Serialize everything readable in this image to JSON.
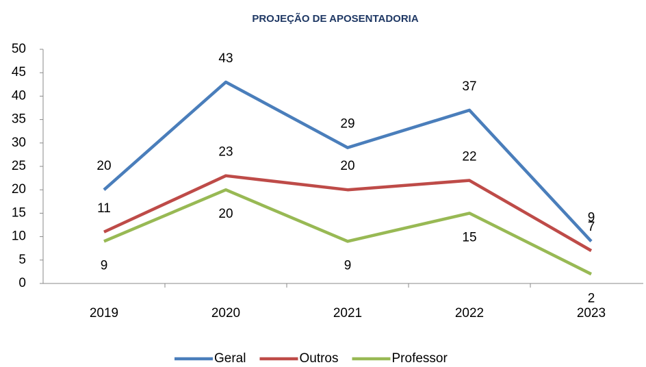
{
  "chart_data": {
    "type": "line",
    "title": "PROJEÇÃO DE APOSENTADORIA",
    "categories": [
      "2019",
      "2020",
      "2021",
      "2022",
      "2023"
    ],
    "series": [
      {
        "name": "Geral",
        "color": "#4a7ebb",
        "values": [
          20,
          43,
          29,
          37,
          9
        ]
      },
      {
        "name": "Outros",
        "color": "#be4b48",
        "values": [
          11,
          23,
          20,
          22,
          7
        ]
      },
      {
        "name": "Professor",
        "color": "#98b954",
        "values": [
          9,
          20,
          9,
          15,
          2
        ]
      }
    ],
    "ylim": [
      0,
      50
    ],
    "yticks": [
      0,
      5,
      10,
      15,
      20,
      25,
      30,
      35,
      40,
      45,
      50
    ],
    "grid": false,
    "legend": "bottom"
  }
}
